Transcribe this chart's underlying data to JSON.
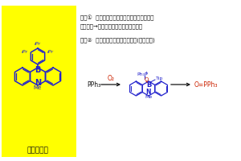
{
  "bg_color": "#ffffff",
  "yellow_box_color": "#ffff00",
  "title_line1": "役割①  光エネルギーを化学エネルギーに変換",
  "title_line2": "　　　　→空気中の不活性酸素を活性化",
  "title_line3": "役割②  反応中間体を捕捉・活性化(下図参照)",
  "catalyst_label": "ホウ素触媒",
  "blue_color": "#2222cc",
  "red_color": "#cc2200",
  "black_color": "#111111"
}
